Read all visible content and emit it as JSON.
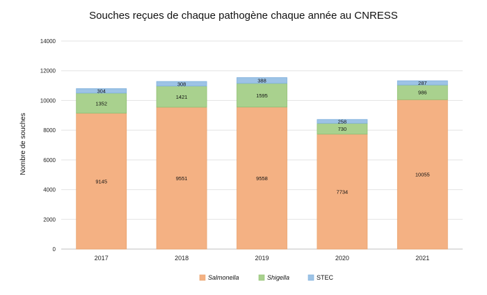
{
  "chart_data": {
    "type": "bar",
    "stacked": true,
    "title": "Souches reçues de chaque pathogène chaque année au CNRESS",
    "xlabel": "",
    "ylabel": "Nombre de souches",
    "ylim": [
      0,
      14000
    ],
    "yticks": [
      0,
      2000,
      4000,
      6000,
      8000,
      10000,
      12000,
      14000
    ],
    "categories": [
      "2017",
      "2018",
      "2019",
      "2020",
      "2021"
    ],
    "series": [
      {
        "name": "Salmonella",
        "color": "#f4b183",
        "border": "#e8a36f",
        "italic": true,
        "values": [
          9145,
          9551,
          9558,
          7734,
          10055
        ]
      },
      {
        "name": "Shigella",
        "color": "#a9d18e",
        "border": "#8fbf72",
        "italic": true,
        "values": [
          1352,
          1421,
          1595,
          730,
          986
        ]
      },
      {
        "name": "STEC",
        "color": "#9dc3e6",
        "border": "#7fb0dc",
        "italic": false,
        "values": [
          304,
          308,
          388,
          258,
          287
        ]
      }
    ],
    "grid": true,
    "legend_position": "bottom"
  }
}
